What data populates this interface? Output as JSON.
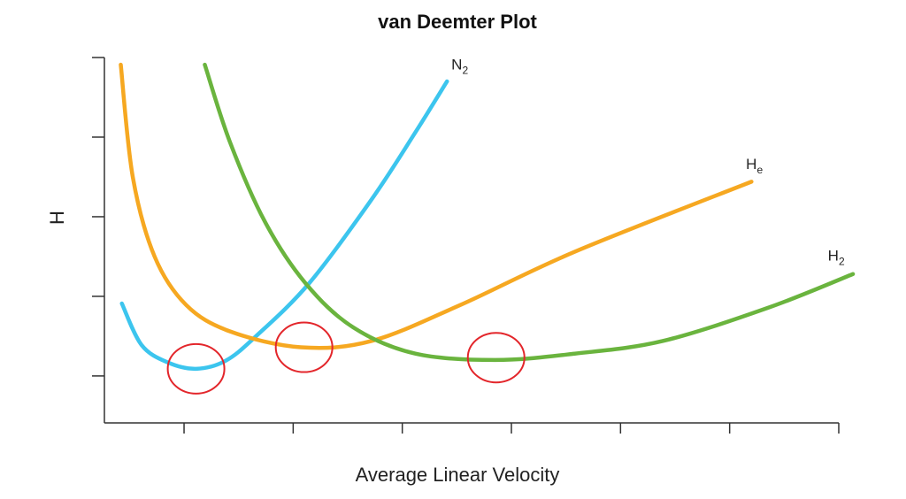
{
  "chart_data": {
    "type": "line",
    "title": "van Deemter Plot",
    "xlabel": "Average Linear Velocity",
    "ylabel": "H",
    "xlim": [
      0.27,
      7.0
    ],
    "ylim": [
      0.41,
      5.0
    ],
    "x_ticks": [
      1,
      2,
      3,
      4,
      5,
      6,
      7
    ],
    "y_ticks": [
      1,
      2,
      3,
      4,
      5
    ],
    "tick_labels_shown": false,
    "grid": false,
    "series": [
      {
        "name": "N2",
        "label_main": "N",
        "label_sub": "2",
        "color": "#3cc5ee",
        "label_at": [
          3.45,
          4.85
        ],
        "points": [
          [
            0.43,
            1.91
          ],
          [
            0.61,
            1.39
          ],
          [
            0.85,
            1.17
          ],
          [
            1.11,
            1.09
          ],
          [
            1.38,
            1.19
          ],
          [
            1.66,
            1.5
          ],
          [
            2.15,
            2.17
          ],
          [
            2.72,
            3.22
          ],
          [
            3.12,
            4.06
          ],
          [
            3.41,
            4.7
          ]
        ]
      },
      {
        "name": "He",
        "label_main": "H",
        "label_sub": "e",
        "color": "#f6a821",
        "label_at": [
          6.15,
          3.6
        ],
        "points": [
          [
            0.42,
            4.91
          ],
          [
            0.53,
            3.5
          ],
          [
            0.73,
            2.5
          ],
          [
            1.02,
            1.89
          ],
          [
            1.42,
            1.56
          ],
          [
            2.07,
            1.36
          ],
          [
            2.72,
            1.44
          ],
          [
            3.53,
            1.89
          ],
          [
            4.58,
            2.56
          ],
          [
            6.2,
            3.44
          ]
        ]
      },
      {
        "name": "H2",
        "label_main": "H",
        "label_sub": "2",
        "color": "#6ab43e",
        "label_at": [
          6.9,
          2.45
        ],
        "points": [
          [
            1.19,
            4.91
          ],
          [
            1.42,
            3.94
          ],
          [
            1.74,
            2.94
          ],
          [
            2.11,
            2.17
          ],
          [
            2.55,
            1.61
          ],
          [
            3.12,
            1.28
          ],
          [
            3.85,
            1.2
          ],
          [
            4.58,
            1.28
          ],
          [
            5.39,
            1.44
          ],
          [
            6.36,
            1.86
          ],
          [
            7.13,
            2.28
          ]
        ]
      }
    ],
    "annotations": [
      {
        "type": "circle",
        "series": "N2",
        "center": [
          1.11,
          1.09
        ],
        "color": "#e3262b"
      },
      {
        "type": "circle",
        "series": "He",
        "center": [
          2.1,
          1.36
        ],
        "color": "#e3262b"
      },
      {
        "type": "circle",
        "series": "H2",
        "center": [
          3.86,
          1.23
        ],
        "color": "#e3262b"
      }
    ]
  }
}
